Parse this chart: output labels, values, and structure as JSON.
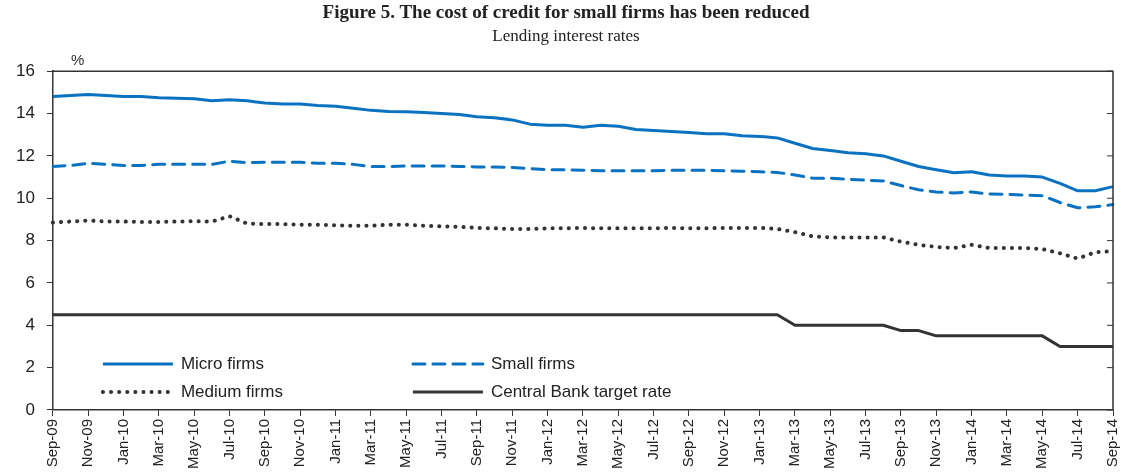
{
  "chart_data": {
    "type": "line",
    "title": "Figure 5. The cost of credit for small firms has been reduced",
    "subtitle": "Lending interest rates",
    "ylabel": "%",
    "categories": [
      "Sep-09",
      null,
      "Nov-09",
      null,
      "Jan-10",
      null,
      "Mar-10",
      null,
      "May-10",
      null,
      "Jul-10",
      null,
      "Sep-10",
      null,
      "Nov-10",
      null,
      "Jan-11",
      null,
      "Mar-11",
      null,
      "May-11",
      null,
      "Jul-11",
      null,
      "Sep-11",
      null,
      "Nov-11",
      null,
      "Jan-12",
      null,
      "Mar-12",
      null,
      "May-12",
      null,
      "Jul-12",
      null,
      "Sep-12",
      null,
      "Nov-12",
      null,
      "Jan-13",
      null,
      "Mar-13",
      null,
      "May-13",
      null,
      "Jul-13",
      null,
      "Sep-13",
      null,
      "Nov-13",
      null,
      "Jan-14",
      null,
      "Mar-14",
      null,
      "May-14",
      null,
      "Jul-14",
      null,
      "Sep-14"
    ],
    "series": [
      {
        "name": "Micro firms",
        "color": "#0a72c1",
        "line_style": "solid",
        "values": [
          14.8,
          14.85,
          14.9,
          14.85,
          14.8,
          14.8,
          14.75,
          14.72,
          14.7,
          14.6,
          14.65,
          14.6,
          14.5,
          14.45,
          14.45,
          14.38,
          14.35,
          14.25,
          14.15,
          14.1,
          14.08,
          14.05,
          14.0,
          13.95,
          13.85,
          13.8,
          13.7,
          13.5,
          13.45,
          13.45,
          13.35,
          13.45,
          13.4,
          13.25,
          13.2,
          13.15,
          13.1,
          13.05,
          13.05,
          12.95,
          12.92,
          12.85,
          12.6,
          12.35,
          12.25,
          12.15,
          12.1,
          12.0,
          11.75,
          11.5,
          11.35,
          11.2,
          11.25,
          11.1,
          11.05,
          11.05,
          11.0,
          10.7,
          10.35,
          10.35,
          10.55
        ]
      },
      {
        "name": "Small firms",
        "color": "#0a72c1",
        "line_style": "dashed",
        "values": [
          11.5,
          11.55,
          11.65,
          11.6,
          11.55,
          11.55,
          11.6,
          11.6,
          11.6,
          11.6,
          11.75,
          11.68,
          11.7,
          11.7,
          11.7,
          11.65,
          11.65,
          11.6,
          11.5,
          11.5,
          11.52,
          11.52,
          11.52,
          11.5,
          11.48,
          11.48,
          11.45,
          11.4,
          11.35,
          11.35,
          11.32,
          11.3,
          11.3,
          11.3,
          11.3,
          11.32,
          11.32,
          11.32,
          11.3,
          11.28,
          11.25,
          11.22,
          11.1,
          10.95,
          10.95,
          10.9,
          10.85,
          10.82,
          10.6,
          10.4,
          10.3,
          10.25,
          10.3,
          10.2,
          10.18,
          10.15,
          10.12,
          9.8,
          9.55,
          9.6,
          9.7
        ]
      },
      {
        "name": "Medium firms",
        "color": "#333333",
        "line_style": "dotted",
        "values": [
          8.85,
          8.9,
          8.95,
          8.9,
          8.9,
          8.88,
          8.88,
          8.9,
          8.92,
          8.9,
          9.15,
          8.8,
          8.78,
          8.78,
          8.75,
          8.75,
          8.72,
          8.7,
          8.7,
          8.75,
          8.75,
          8.7,
          8.68,
          8.65,
          8.6,
          8.58,
          8.55,
          8.55,
          8.58,
          8.58,
          8.6,
          8.58,
          8.58,
          8.58,
          8.58,
          8.6,
          8.58,
          8.58,
          8.6,
          8.6,
          8.6,
          8.55,
          8.4,
          8.2,
          8.15,
          8.15,
          8.15,
          8.15,
          7.95,
          7.8,
          7.7,
          7.65,
          7.8,
          7.65,
          7.65,
          7.65,
          7.6,
          7.4,
          7.15,
          7.45,
          7.5
        ]
      },
      {
        "name": "Central Bank target rate",
        "color": "#333333",
        "line_style": "solid",
        "values": [
          4.5,
          4.5,
          4.5,
          4.5,
          4.5,
          4.5,
          4.5,
          4.5,
          4.5,
          4.5,
          4.5,
          4.5,
          4.5,
          4.5,
          4.5,
          4.5,
          4.5,
          4.5,
          4.5,
          4.5,
          4.5,
          4.5,
          4.5,
          4.5,
          4.5,
          4.5,
          4.5,
          4.5,
          4.5,
          4.5,
          4.5,
          4.5,
          4.5,
          4.5,
          4.5,
          4.5,
          4.5,
          4.5,
          4.5,
          4.5,
          4.5,
          4.5,
          4.0,
          4.0,
          4.0,
          4.0,
          4.0,
          4.0,
          3.75,
          3.75,
          3.5,
          3.5,
          3.5,
          3.5,
          3.5,
          3.5,
          3.5,
          3.0,
          3.0,
          3.0,
          3.0
        ]
      }
    ],
    "ylim": [
      0,
      16
    ],
    "yticks": [
      0,
      2,
      4,
      6,
      8,
      10,
      12,
      14,
      16
    ],
    "grid": false,
    "legend": "bottom left",
    "marker": "none"
  }
}
